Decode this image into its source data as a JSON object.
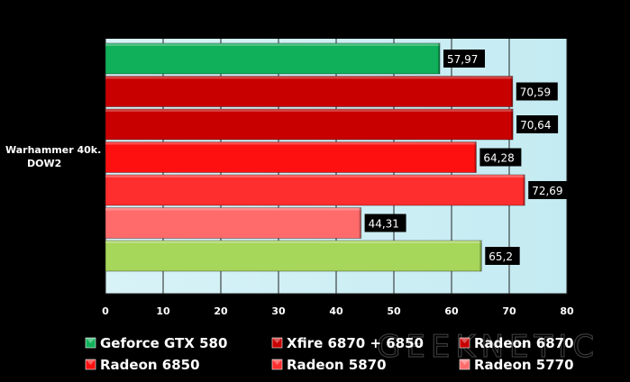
{
  "chart_data": {
    "type": "bar",
    "orientation": "horizontal",
    "categories": [
      "Warhammer 40k. DOW2"
    ],
    "category_label_lines": [
      "Warhammer 40k.",
      "DOW2"
    ],
    "series": [
      {
        "name": "Geforce GTX 580",
        "value": 57.97,
        "label": "57,97",
        "color": "#10b05a"
      },
      {
        "name": "Xfire 6870 + 6850",
        "value": 70.59,
        "label": "70,59",
        "color": "#c80000"
      },
      {
        "name": "Radeon 6870",
        "value": 70.64,
        "label": "70,64",
        "color": "#c80000"
      },
      {
        "name": "Radeon 6850",
        "value": 64.28,
        "label": "64,28",
        "color": "#ff1010"
      },
      {
        "name": "Radeon 5870",
        "value": 72.69,
        "label": "72,69",
        "color": "#ff2e2e"
      },
      {
        "name": "Radeon 5770",
        "value": 44.31,
        "label": "44,31",
        "color": "#ff6b6b"
      },
      {
        "name": "",
        "value": 65.2,
        "label": "65,2",
        "color": "#a6d65a"
      }
    ],
    "xlim": [
      0,
      80
    ],
    "x_ticks": [
      0,
      10,
      20,
      30,
      40,
      50,
      60,
      70,
      80
    ],
    "grid": true,
    "legend_position": "bottom",
    "plot_background": "#cfeef4"
  },
  "watermark": "GEEKNETIC"
}
